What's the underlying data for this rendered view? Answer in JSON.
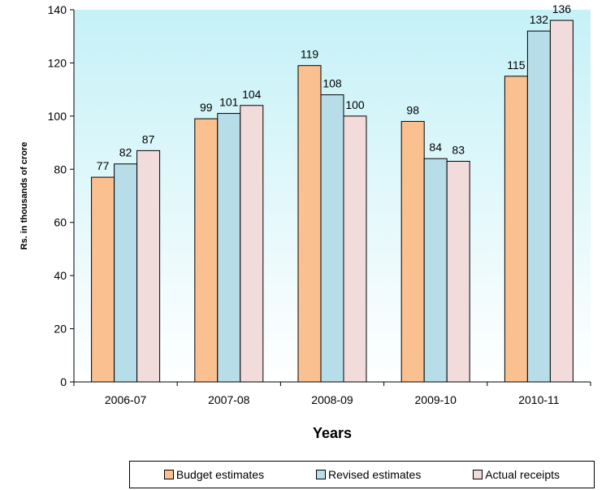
{
  "chart_data": {
    "type": "bar",
    "title": "",
    "xlabel": "Years",
    "ylabel": "Rs. in thousands of crore",
    "ylim": [
      0,
      140
    ],
    "yticks": [
      0,
      20,
      40,
      60,
      80,
      100,
      120,
      140
    ],
    "categories": [
      "2006-07",
      "2007-08",
      "2008-09",
      "2009-10",
      "2010-11"
    ],
    "series": [
      {
        "name": "Budget estimates",
        "values": [
          77,
          99,
          119,
          98,
          115
        ],
        "color": "#fac090"
      },
      {
        "name": "Revised estimates",
        "values": [
          82,
          101,
          108,
          84,
          132
        ],
        "color": "#b7dde8"
      },
      {
        "name": "Actual receipts",
        "values": [
          87,
          104,
          100,
          83,
          136
        ],
        "color": "#f2dcdb"
      }
    ],
    "data_labels": true,
    "legend_position": "bottom",
    "plot_background": "gradient-light-cyan",
    "grid": false
  }
}
